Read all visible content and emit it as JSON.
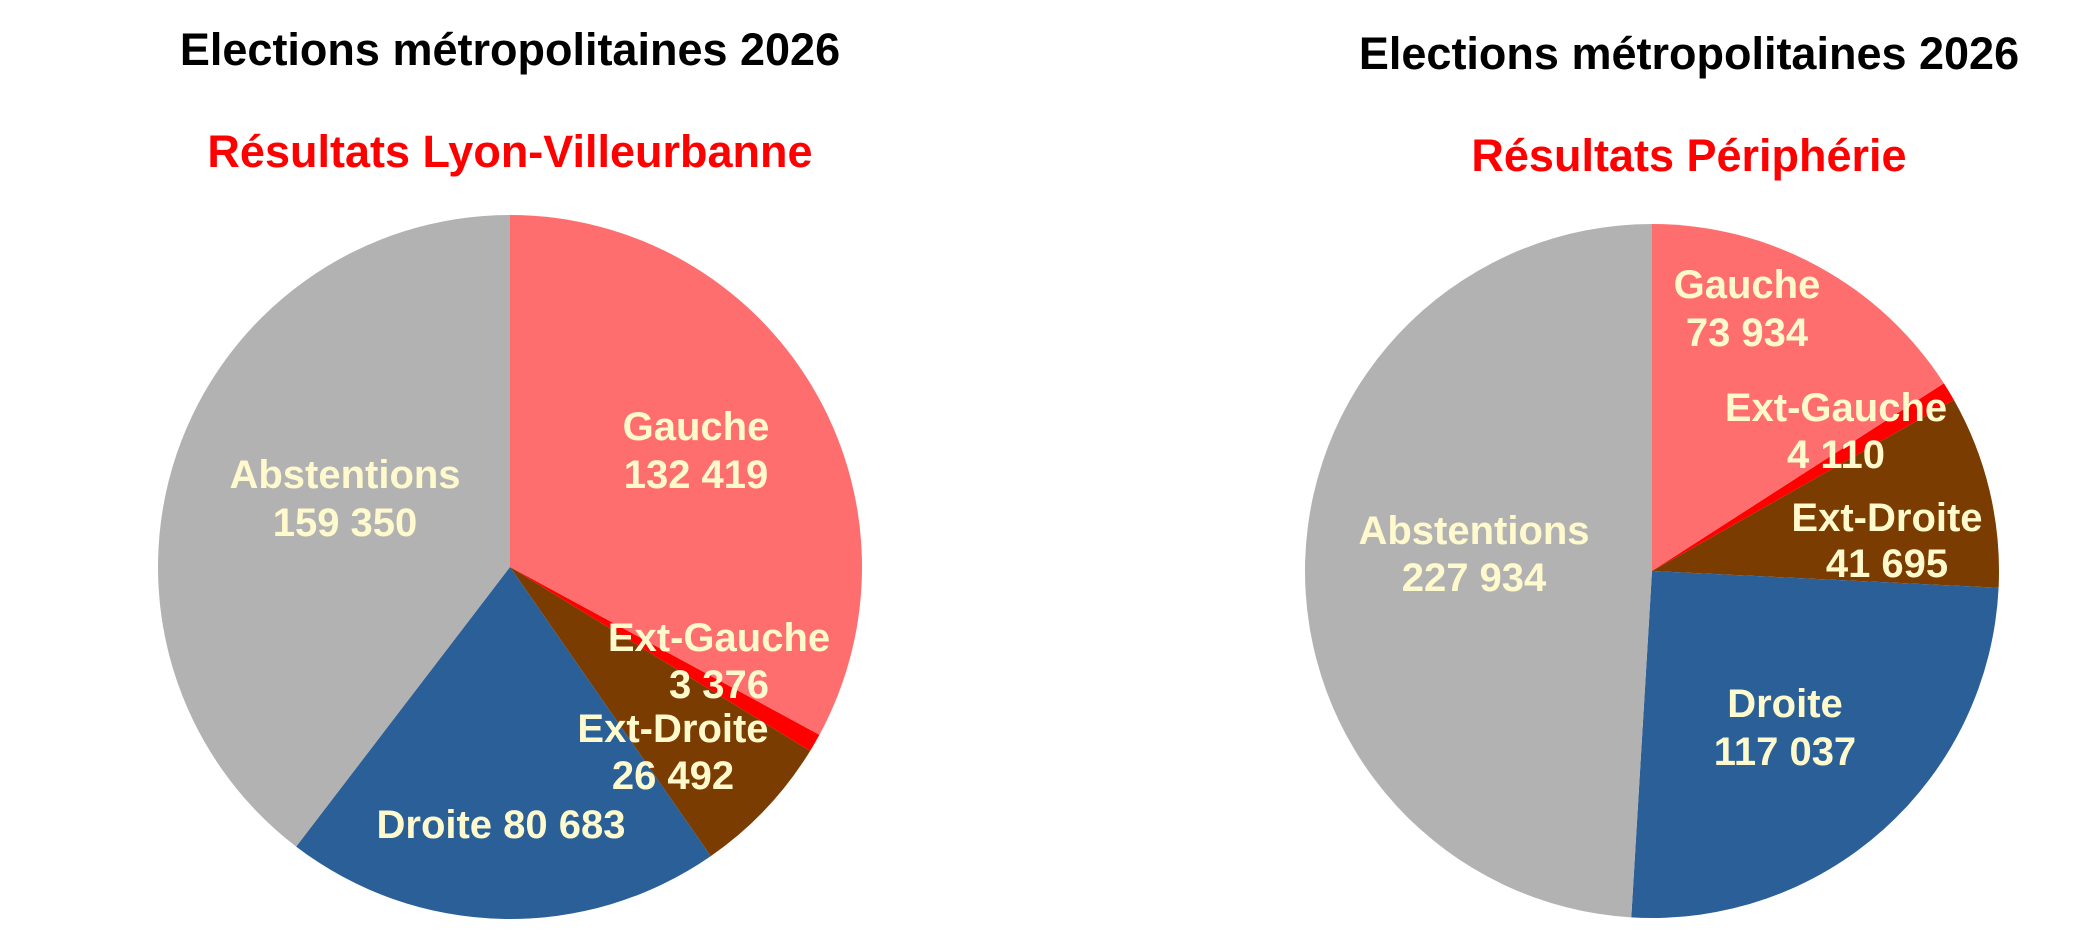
{
  "colors": {
    "title": "#000000",
    "subtitle": "#ff0000",
    "label": "#fffacd"
  },
  "chart_data": [
    {
      "type": "pie",
      "title": "Elections métropolitaines 2026",
      "subtitle": "Résultats Lyon-Villeurbanne",
      "slices": [
        {
          "label": "Gauche",
          "value": 132419,
          "display": "132 419",
          "color": "#ff6e6e"
        },
        {
          "label": "Ext-Gauche",
          "value": 3376,
          "display": "3 376",
          "color": "#ff0000"
        },
        {
          "label": "Ext-Droite",
          "value": 26492,
          "display": "26 492",
          "color": "#7a3c00"
        },
        {
          "label": "Droite",
          "value": 80683,
          "display": "80 683",
          "color": "#2b5f97"
        },
        {
          "label": "Abstentions",
          "value": 159350,
          "display": "159 350",
          "color": "#b2b2b2"
        }
      ]
    },
    {
      "type": "pie",
      "title": "Elections métropolitaines 2026",
      "subtitle": "Résultats Périphérie",
      "slices": [
        {
          "label": "Gauche",
          "value": 73934,
          "display": "73 934",
          "color": "#ff6e6e"
        },
        {
          "label": "Ext-Gauche",
          "value": 4110,
          "display": "4 110",
          "color": "#ff0000"
        },
        {
          "label": "Ext-Droite",
          "value": 41695,
          "display": "41 695",
          "color": "#7a3c00"
        },
        {
          "label": "Droite",
          "value": 117037,
          "display": "117 037",
          "color": "#2b5f97"
        },
        {
          "label": "Abstentions",
          "value": 227934,
          "display": "227 934",
          "color": "#b2b2b2"
        }
      ]
    }
  ]
}
